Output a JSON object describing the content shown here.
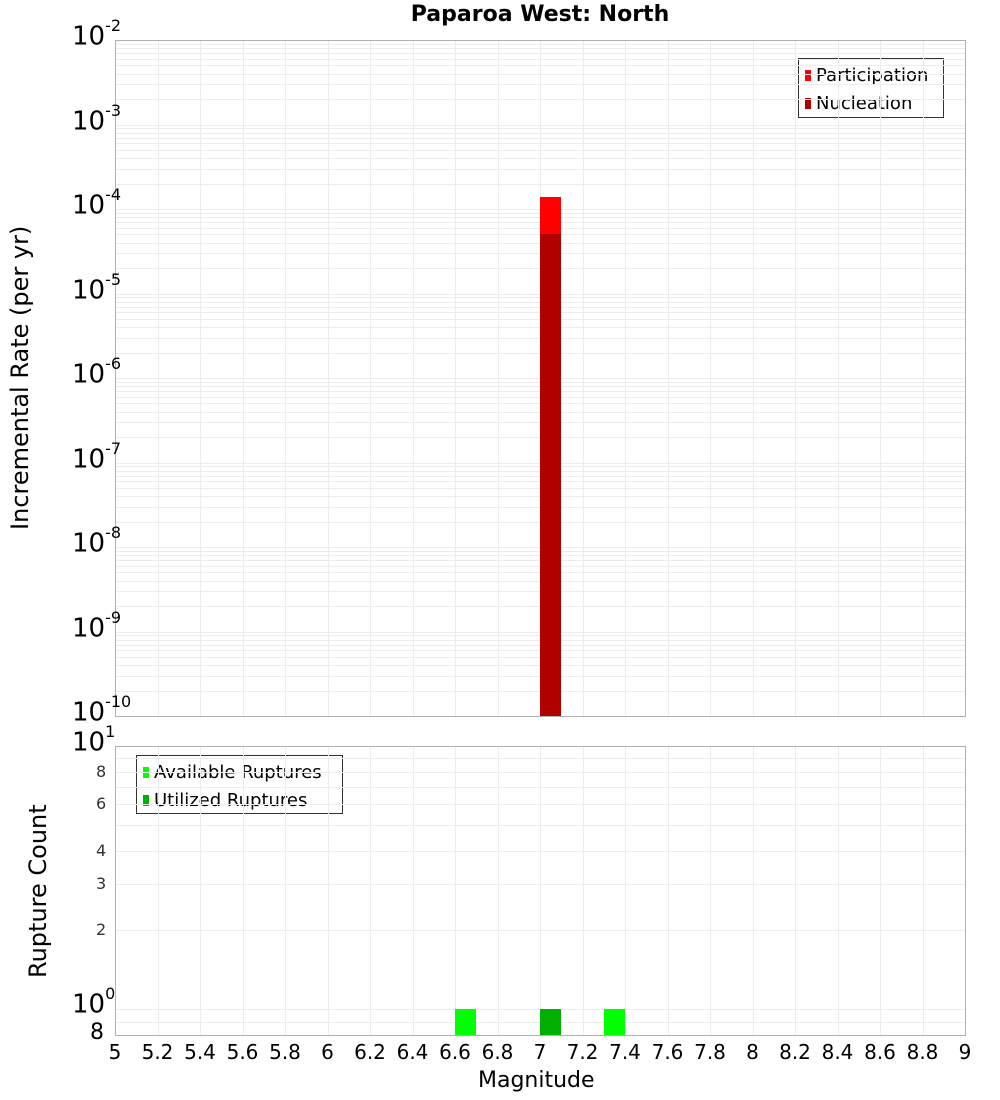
{
  "title": "Paparoa West: North",
  "colors": {
    "participation": "#ff0000",
    "nucleation": "#b00000",
    "available": "#00ff00",
    "utilized": "#00b000",
    "grid": "#ececec",
    "frame": "#b0b0b0"
  },
  "top_plot": {
    "ylabel": "Incremental Rate (per yr)",
    "y_ticks": [
      {
        "base": "10",
        "exp": "-2"
      },
      {
        "base": "10",
        "exp": "-3"
      },
      {
        "base": "10",
        "exp": "-4"
      },
      {
        "base": "10",
        "exp": "-5"
      },
      {
        "base": "10",
        "exp": "-6"
      },
      {
        "base": "10",
        "exp": "-7"
      },
      {
        "base": "10",
        "exp": "-8"
      },
      {
        "base": "10",
        "exp": "-9"
      },
      {
        "base": "10",
        "exp": "-10"
      }
    ],
    "legend": [
      {
        "label": "Participation",
        "color": "#ff0000"
      },
      {
        "label": "Nucleation",
        "color": "#b00000"
      }
    ]
  },
  "bottom_plot": {
    "ylabel": "Rupture Count",
    "y_ticks": {
      "top": {
        "base": "10",
        "exp": "1"
      },
      "one": {
        "base": "10",
        "exp": "0"
      },
      "minor": [
        "8",
        "6",
        "4",
        "3",
        "2"
      ],
      "bottom": "8"
    },
    "legend": [
      {
        "label": "Available Ruptures",
        "color": "#00ff00"
      },
      {
        "label": "Utilized Ruptures",
        "color": "#00b000"
      }
    ]
  },
  "x_axis": {
    "label": "Magnitude",
    "ticks": [
      "5",
      "5.2",
      "5.4",
      "5.6",
      "5.8",
      "6",
      "6.2",
      "6.4",
      "6.6",
      "6.8",
      "7",
      "7.2",
      "7.4",
      "7.6",
      "7.8",
      "8",
      "8.2",
      "8.4",
      "8.6",
      "8.8",
      "9"
    ]
  },
  "chart_data": [
    {
      "type": "bar",
      "title": "Paparoa West: North",
      "xlabel": "Magnitude",
      "ylabel": "Incremental Rate (per yr)",
      "yscale": "log",
      "xlim": [
        5,
        9
      ],
      "ylim": [
        1e-10,
        0.01
      ],
      "grid": true,
      "legend_position": "upper right",
      "series": [
        {
          "name": "Participation",
          "color": "#ff0000",
          "x": [
            7.05
          ],
          "values": [
            0.00014
          ]
        },
        {
          "name": "Nucleation",
          "color": "#b00000",
          "x": [
            7.05
          ],
          "values": [
            5e-05
          ]
        }
      ]
    },
    {
      "type": "bar",
      "title": "",
      "xlabel": "Magnitude",
      "ylabel": "Rupture Count",
      "yscale": "log",
      "xlim": [
        5,
        9
      ],
      "ylim": [
        0.8,
        10
      ],
      "grid": true,
      "legend_position": "upper left",
      "series": [
        {
          "name": "Available Ruptures",
          "color": "#00ff00",
          "x": [
            6.65,
            7.05,
            7.35
          ],
          "values": [
            1,
            1,
            1
          ]
        },
        {
          "name": "Utilized Ruptures",
          "color": "#00b000",
          "x": [
            7.05
          ],
          "values": [
            1
          ]
        }
      ]
    }
  ]
}
